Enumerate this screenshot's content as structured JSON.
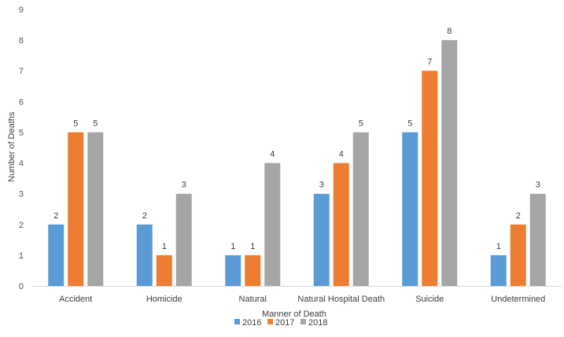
{
  "chart_data": {
    "type": "bar",
    "title": "",
    "xlabel": "Manner of Death",
    "ylabel": "Number of Deaths",
    "ylim": [
      0,
      9
    ],
    "yticks": [
      0,
      1,
      2,
      3,
      4,
      5,
      6,
      7,
      8,
      9
    ],
    "grid": false,
    "legend_position": "bottom",
    "categories": [
      "Accident",
      "Homicide",
      "Natural",
      "Natural Hospital Death",
      "Suicide",
      "Undetermined"
    ],
    "series": [
      {
        "name": "2016",
        "color": "#5B9BD5",
        "values": [
          2,
          2,
          1,
          3,
          5,
          1
        ]
      },
      {
        "name": "2017",
        "color": "#ED7D31",
        "values": [
          5,
          1,
          1,
          4,
          7,
          2
        ]
      },
      {
        "name": "2018",
        "color": "#A5A5A5",
        "values": [
          5,
          3,
          4,
          5,
          8,
          3
        ]
      }
    ]
  }
}
